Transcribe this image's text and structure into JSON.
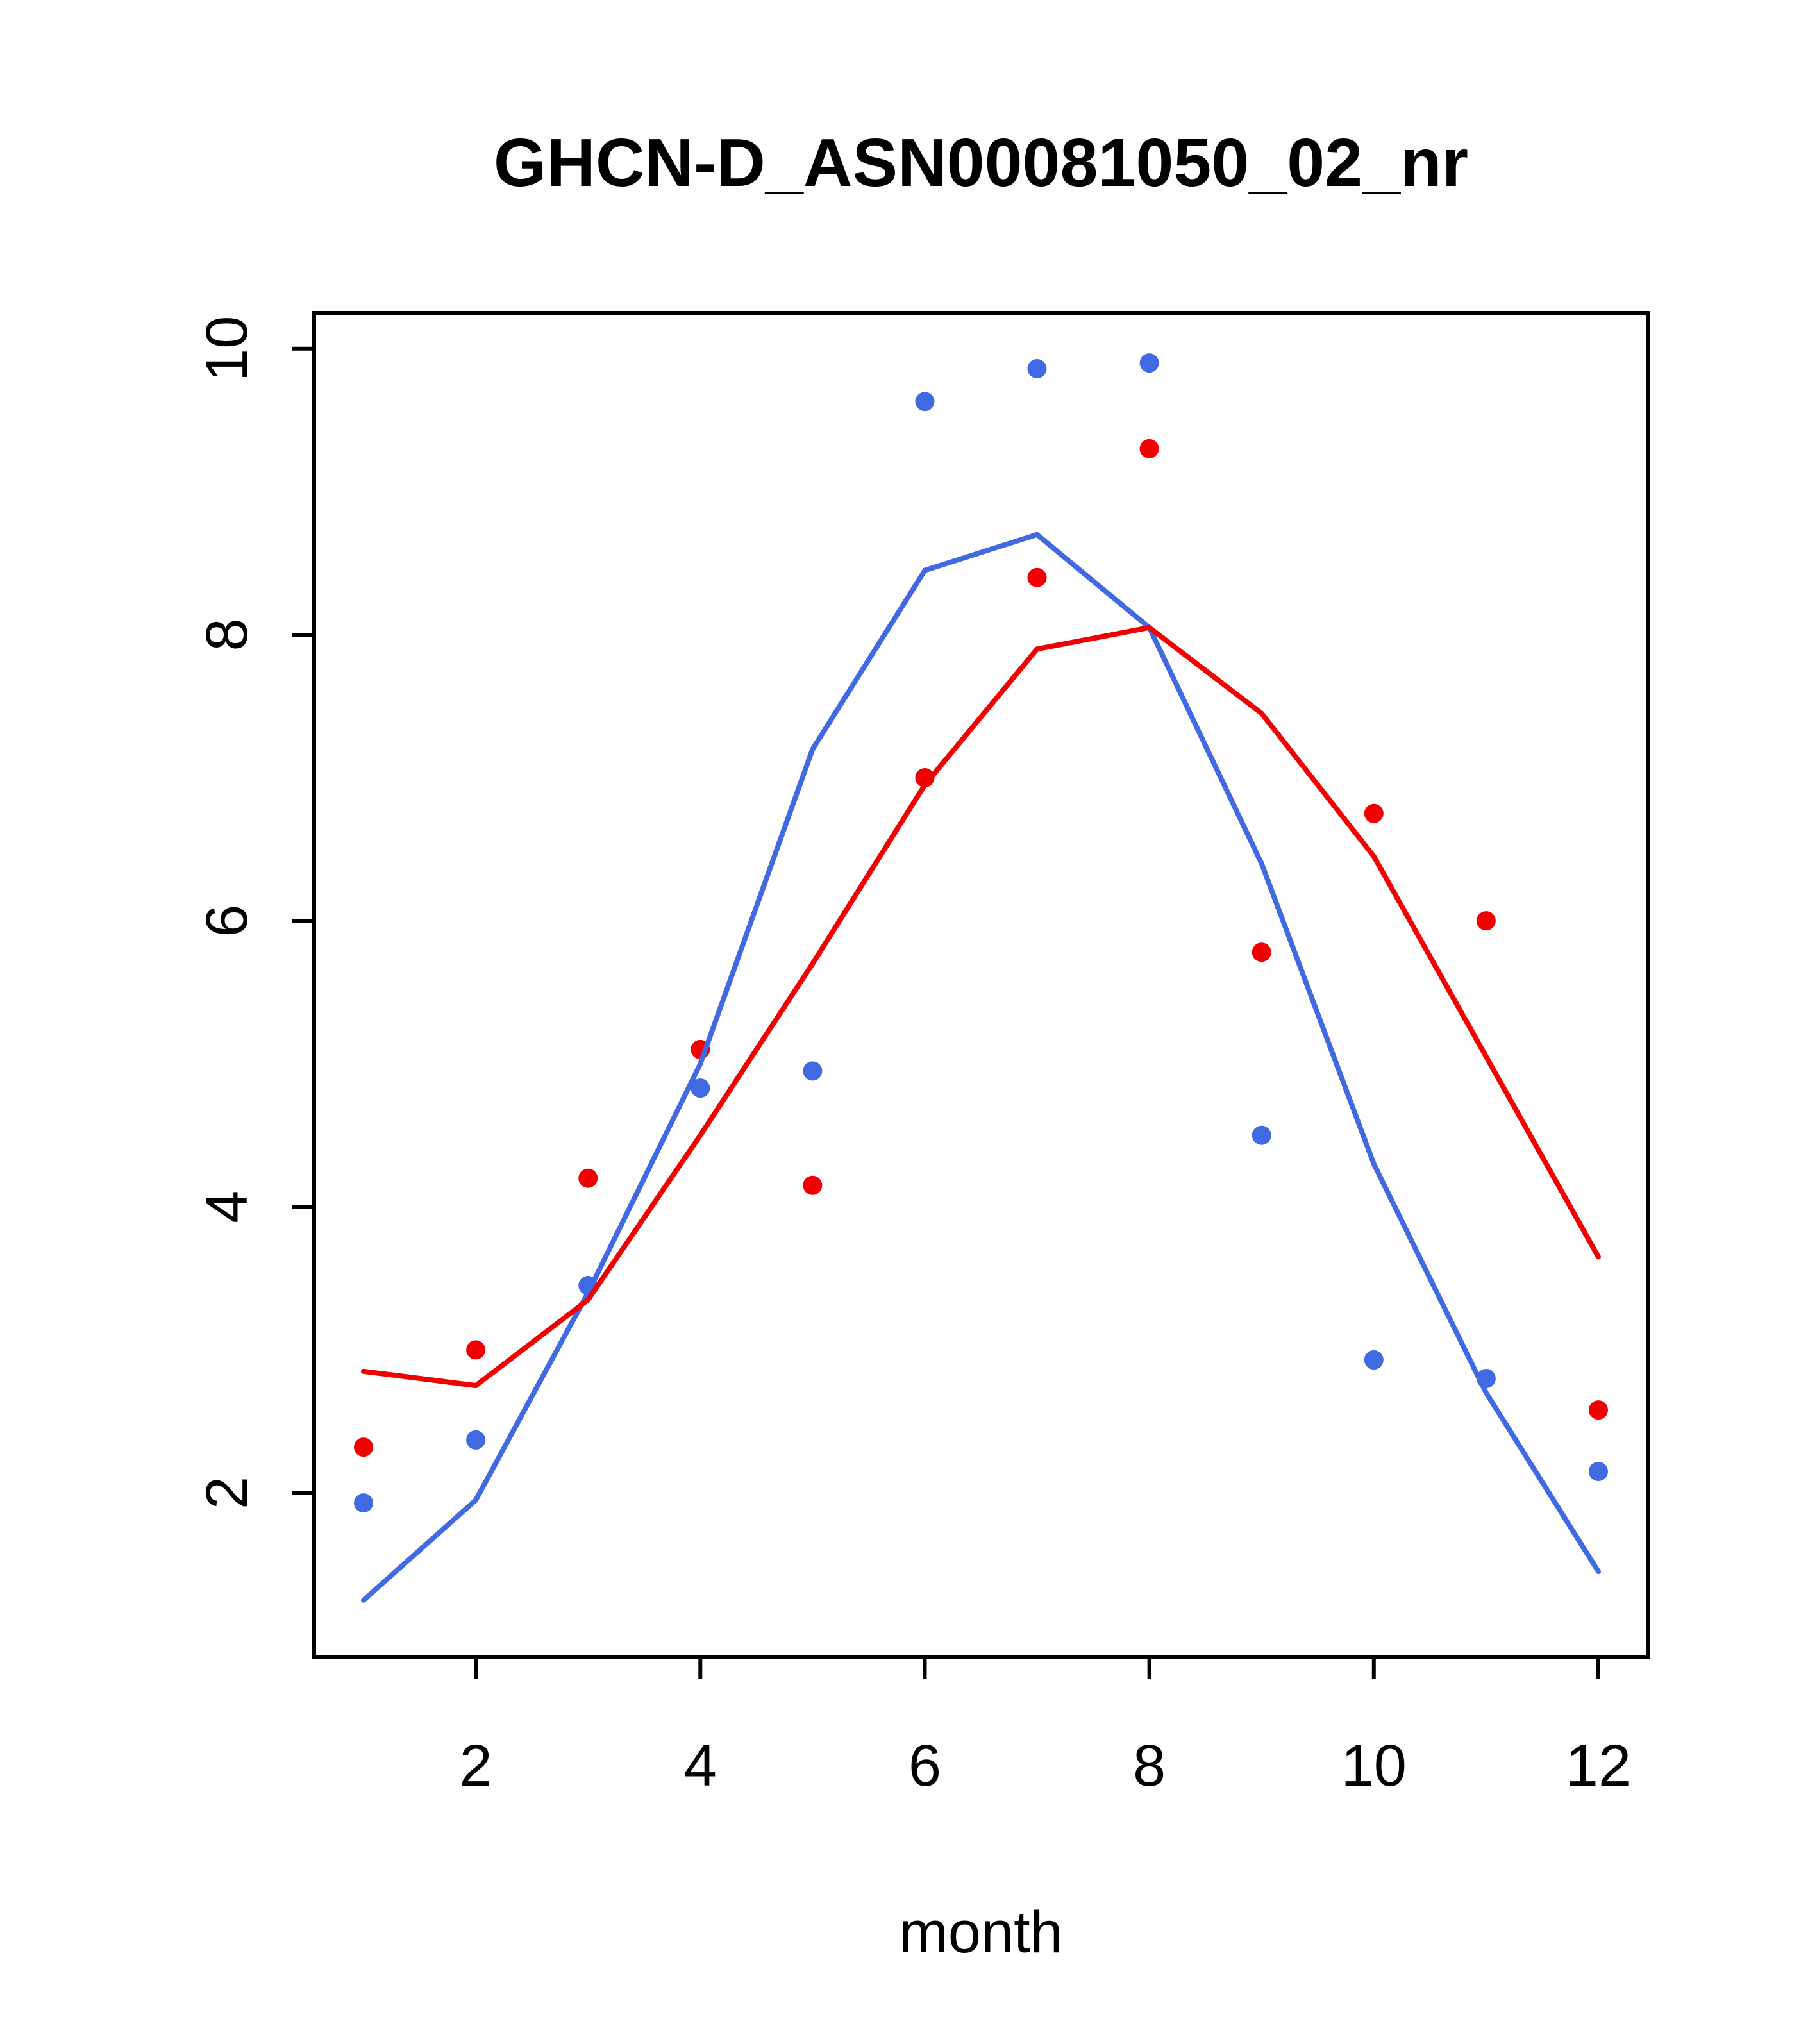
{
  "chart_data": {
    "type": "scatter",
    "title": "GHCN-D_ASN00081050_02_nr",
    "xlabel": "month",
    "ylabel": "",
    "x": [
      1,
      2,
      3,
      4,
      5,
      6,
      7,
      8,
      9,
      10,
      11,
      12
    ],
    "xlim": [
      0.56,
      12.44
    ],
    "ylim": [
      0.85,
      10.25
    ],
    "xticks": [
      2,
      4,
      6,
      8,
      10,
      12
    ],
    "yticks": [
      2,
      4,
      6,
      8,
      10
    ],
    "grid": false,
    "legend": false,
    "background": "#ffffff",
    "box_color": "#000000",
    "series": [
      {
        "name": "blue-points",
        "kind": "points",
        "color": "#4169e1",
        "values": [
          1.93,
          2.37,
          3.45,
          4.83,
          4.95,
          9.63,
          9.86,
          9.9,
          4.5,
          2.93,
          2.8,
          2.15
        ]
      },
      {
        "name": "red-points",
        "kind": "points",
        "color": "#f00000",
        "values": [
          2.32,
          3.0,
          4.2,
          5.1,
          4.15,
          7.0,
          8.4,
          9.3,
          5.78,
          6.75,
          6.0,
          2.58
        ]
      },
      {
        "name": "blue-line",
        "kind": "line",
        "color": "#4169e1",
        "values": [
          1.25,
          1.95,
          3.4,
          5.0,
          7.2,
          8.45,
          8.7,
          8.05,
          6.4,
          4.3,
          2.7,
          1.45
        ]
      },
      {
        "name": "red-line",
        "kind": "line",
        "color": "#f00000",
        "values": [
          2.85,
          2.75,
          3.35,
          4.5,
          5.7,
          6.95,
          7.9,
          8.05,
          7.45,
          6.45,
          5.05,
          3.65
        ]
      }
    ]
  }
}
